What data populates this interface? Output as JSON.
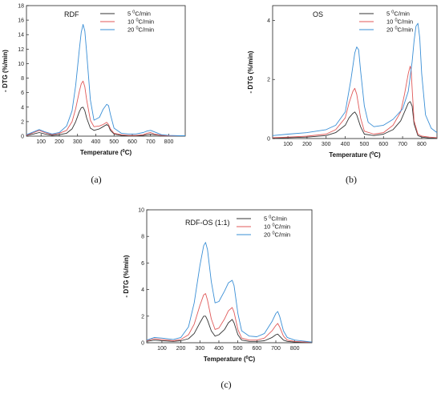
{
  "chart_data": [
    {
      "type": "line",
      "title": "RDF",
      "caption": "(a)",
      "xlabel": "Temperature (°C)",
      "ylabel": "- DTG (%/min)",
      "xlim": [
        20,
        890
      ],
      "ylim": [
        0,
        18
      ],
      "xticks": [
        100,
        200,
        300,
        400,
        500,
        600,
        700,
        800
      ],
      "yticks": [
        0,
        2,
        4,
        6,
        8,
        10,
        12,
        14,
        16,
        18
      ],
      "legend_position": "top-right",
      "series": [
        {
          "name": "5 °C/min",
          "color": "#333333",
          "x": [
            20,
            60,
            90,
            120,
            160,
            200,
            240,
            270,
            290,
            310,
            320,
            330,
            340,
            350,
            370,
            390,
            420,
            440,
            460,
            470,
            480,
            500,
            540,
            580,
            620,
            660,
            680,
            700,
            720,
            760,
            800,
            860,
            890
          ],
          "y": [
            0.1,
            0.3,
            0.5,
            0.3,
            0.1,
            0.2,
            0.4,
            1.0,
            2.0,
            3.4,
            3.9,
            4.0,
            3.5,
            2.5,
            1.1,
            0.8,
            1.0,
            1.3,
            1.6,
            1.4,
            0.8,
            0.3,
            0.1,
            0.05,
            0.05,
            0.1,
            0.2,
            0.25,
            0.2,
            0.1,
            0.05,
            0.05,
            0.05
          ]
        },
        {
          "name": "10 °C/min",
          "color": "#e05a5a",
          "x": [
            20,
            60,
            90,
            120,
            160,
            200,
            240,
            270,
            290,
            310,
            320,
            330,
            340,
            350,
            370,
            390,
            420,
            440,
            460,
            470,
            480,
            500,
            540,
            580,
            620,
            660,
            680,
            700,
            720,
            760,
            800,
            860,
            890
          ],
          "y": [
            0.1,
            0.5,
            0.8,
            0.5,
            0.2,
            0.4,
            0.8,
            2.0,
            3.8,
            6.2,
            7.2,
            7.6,
            6.8,
            5.0,
            2.2,
            1.3,
            1.4,
            1.6,
            1.9,
            1.6,
            1.0,
            0.4,
            0.2,
            0.1,
            0.1,
            0.2,
            0.4,
            0.5,
            0.3,
            0.1,
            0.05,
            0.05,
            0.05
          ]
        },
        {
          "name": "20 °C/min",
          "color": "#3a8fd6",
          "x": [
            20,
            60,
            90,
            120,
            160,
            200,
            240,
            270,
            290,
            310,
            320,
            330,
            340,
            350,
            370,
            390,
            420,
            440,
            460,
            470,
            480,
            500,
            540,
            580,
            620,
            660,
            680,
            700,
            720,
            760,
            800,
            860,
            890
          ],
          "y": [
            0.2,
            0.6,
            0.9,
            0.6,
            0.3,
            0.5,
            1.4,
            3.5,
            7.0,
            12.0,
            14.3,
            15.4,
            14.5,
            11.5,
            5.0,
            2.2,
            2.6,
            3.7,
            4.4,
            4.2,
            3.0,
            1.1,
            0.4,
            0.3,
            0.3,
            0.5,
            0.7,
            0.8,
            0.6,
            0.2,
            0.1,
            0.05,
            0.05
          ]
        }
      ]
    },
    {
      "type": "line",
      "title": "OS",
      "caption": "(b)",
      "xlabel": "Temperature (°C)",
      "ylabel": "- DTG (%/min)",
      "xlim": [
        20,
        880
      ],
      "ylim": [
        0,
        4.5
      ],
      "xticks": [
        100,
        200,
        300,
        400,
        500,
        600,
        700,
        800
      ],
      "yticks": [
        0,
        2,
        4
      ],
      "legend_position": "top-right",
      "series": [
        {
          "name": "5 °C/min",
          "color": "#333333",
          "x": [
            20,
            100,
            200,
            300,
            350,
            400,
            420,
            440,
            450,
            460,
            480,
            500,
            550,
            600,
            650,
            690,
            710,
            730,
            740,
            750,
            760,
            780,
            800,
            840,
            880
          ],
          "y": [
            0.02,
            0.03,
            0.05,
            0.1,
            0.2,
            0.45,
            0.7,
            0.85,
            0.9,
            0.8,
            0.4,
            0.15,
            0.1,
            0.15,
            0.3,
            0.6,
            0.9,
            1.2,
            1.25,
            1.1,
            0.5,
            0.1,
            0.05,
            0.02,
            0.02
          ]
        },
        {
          "name": "10 °C/min",
          "color": "#e05a5a",
          "x": [
            20,
            100,
            200,
            300,
            350,
            400,
            420,
            440,
            450,
            460,
            480,
            500,
            550,
            600,
            650,
            690,
            710,
            730,
            740,
            745,
            750,
            760,
            780,
            800,
            840,
            880
          ],
          "y": [
            0.03,
            0.05,
            0.08,
            0.15,
            0.3,
            0.7,
            1.2,
            1.6,
            1.7,
            1.5,
            0.7,
            0.25,
            0.15,
            0.2,
            0.45,
            0.9,
            1.5,
            2.2,
            2.45,
            2.3,
            1.7,
            0.6,
            0.15,
            0.08,
            0.05,
            0.03
          ]
        },
        {
          "name": "20 °C/min",
          "color": "#3a8fd6",
          "x": [
            20,
            100,
            200,
            300,
            350,
            400,
            430,
            450,
            460,
            470,
            480,
            500,
            520,
            550,
            600,
            650,
            700,
            730,
            750,
            760,
            770,
            780,
            790,
            800,
            820,
            850,
            880
          ],
          "y": [
            0.1,
            0.15,
            0.2,
            0.3,
            0.45,
            0.9,
            2.0,
            2.9,
            3.1,
            3.0,
            2.3,
            1.1,
            0.55,
            0.4,
            0.45,
            0.65,
            1.0,
            1.6,
            2.6,
            3.3,
            3.8,
            3.9,
            3.4,
            2.2,
            0.8,
            0.35,
            0.2
          ]
        }
      ]
    },
    {
      "type": "line",
      "title": "RDF-OS (1:1)",
      "caption": "(c)",
      "xlabel": "Temperature (°C)",
      "ylabel": "- DTG (%/min)",
      "xlim": [
        20,
        890
      ],
      "ylim": [
        0,
        10
      ],
      "xticks": [
        100,
        200,
        300,
        400,
        500,
        600,
        700,
        800
      ],
      "yticks": [
        0,
        2,
        4,
        6,
        8,
        10
      ],
      "legend_position": "top-right",
      "series": [
        {
          "name": "5 °C/min",
          "color": "#333333",
          "x": [
            20,
            60,
            100,
            160,
            200,
            240,
            270,
            300,
            320,
            330,
            340,
            360,
            380,
            400,
            430,
            450,
            470,
            480,
            500,
            520,
            560,
            600,
            640,
            680,
            700,
            710,
            720,
            740,
            760,
            800,
            860,
            890
          ],
          "y": [
            0.1,
            0.2,
            0.15,
            0.1,
            0.15,
            0.3,
            0.7,
            1.5,
            2.0,
            2.0,
            1.7,
            0.9,
            0.5,
            0.6,
            1.0,
            1.5,
            1.75,
            1.5,
            0.6,
            0.2,
            0.1,
            0.1,
            0.15,
            0.4,
            0.6,
            0.65,
            0.5,
            0.2,
            0.1,
            0.05,
            0.05,
            0.05
          ]
        },
        {
          "name": "10 °C/min",
          "color": "#e05a5a",
          "x": [
            20,
            60,
            100,
            160,
            200,
            240,
            270,
            300,
            320,
            330,
            340,
            360,
            380,
            400,
            430,
            450,
            470,
            480,
            500,
            520,
            560,
            600,
            640,
            680,
            700,
            710,
            720,
            740,
            760,
            800,
            860,
            890
          ],
          "y": [
            0.15,
            0.3,
            0.25,
            0.15,
            0.25,
            0.6,
            1.4,
            2.8,
            3.6,
            3.7,
            3.2,
            1.8,
            1.0,
            1.1,
            1.8,
            2.4,
            2.65,
            2.3,
            1.0,
            0.35,
            0.2,
            0.2,
            0.35,
            0.9,
            1.3,
            1.45,
            1.2,
            0.5,
            0.2,
            0.1,
            0.05,
            0.05
          ]
        },
        {
          "name": "20 °C/min",
          "color": "#3a8fd6",
          "x": [
            20,
            60,
            100,
            160,
            200,
            240,
            270,
            300,
            320,
            330,
            340,
            360,
            380,
            400,
            430,
            450,
            470,
            480,
            500,
            520,
            560,
            600,
            640,
            680,
            700,
            710,
            720,
            740,
            760,
            800,
            860,
            890
          ],
          "y": [
            0.2,
            0.4,
            0.35,
            0.25,
            0.4,
            1.2,
            3.0,
            5.8,
            7.3,
            7.55,
            7.0,
            4.6,
            3.0,
            3.1,
            3.9,
            4.5,
            4.7,
            4.3,
            2.2,
            0.9,
            0.5,
            0.45,
            0.7,
            1.6,
            2.2,
            2.35,
            2.0,
            0.9,
            0.4,
            0.2,
            0.1,
            0.05
          ]
        }
      ]
    }
  ]
}
